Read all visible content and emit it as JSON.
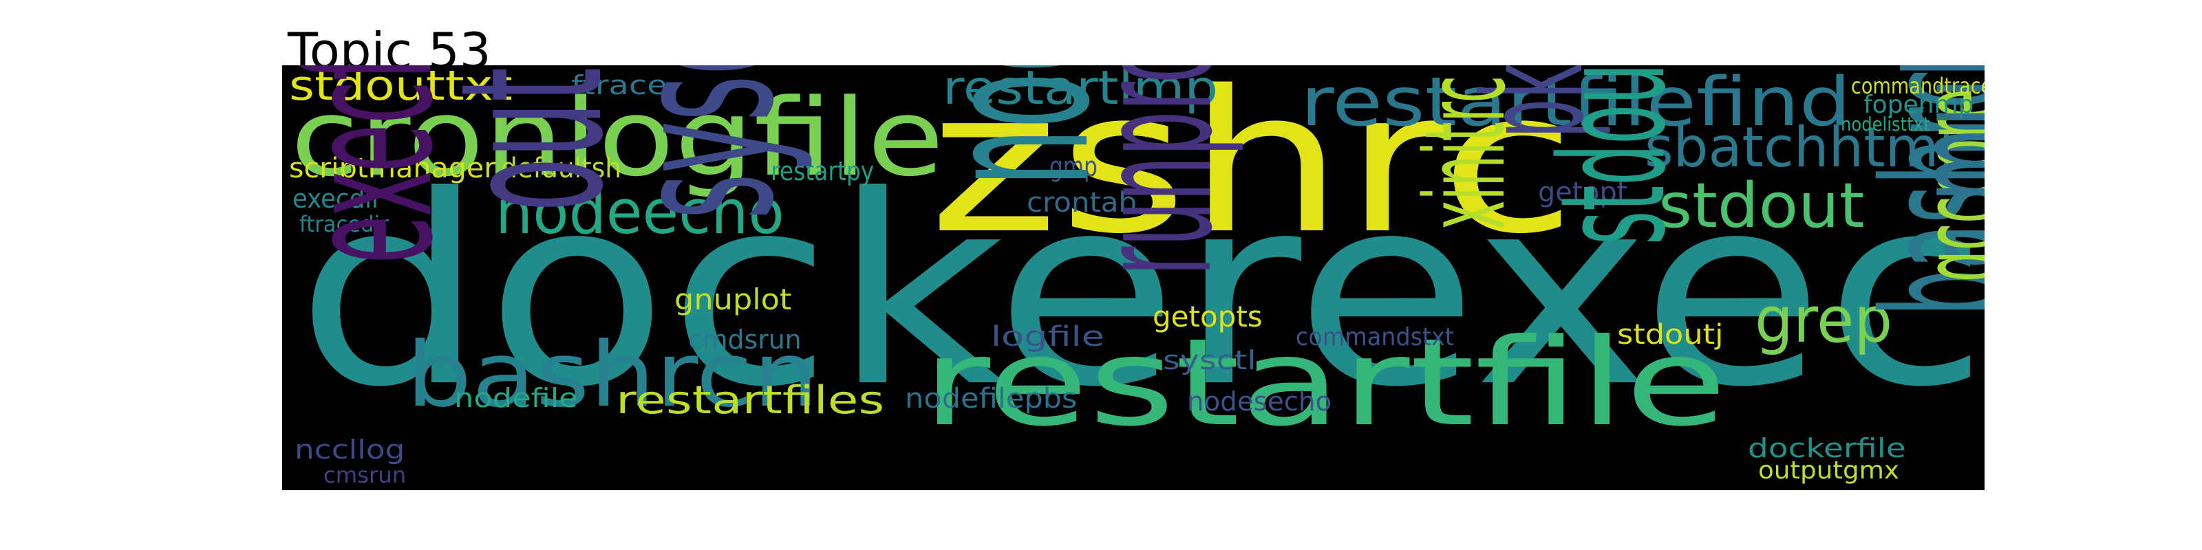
{
  "title": "Topic 53",
  "colors": {
    "page_background": "#ffffff",
    "cloud_background": "#000000"
  },
  "words": [
    {
      "text": "dockerexec",
      "color": "#208c8c"
    },
    {
      "text": "zshrc",
      "color": "#e2e418"
    },
    {
      "text": "restartfile",
      "color": "#35b779"
    },
    {
      "text": "cronlogfile",
      "color": "#7ad151"
    },
    {
      "text": "restartfilefind",
      "color": "#2a788e"
    },
    {
      "text": "bashrcn",
      "color": "#26828e"
    },
    {
      "text": "nodeecho",
      "color": "#22a884"
    },
    {
      "text": "sbatchhtml",
      "color": "#2a788e"
    },
    {
      "text": "stdout",
      "color": "#4ac16d"
    },
    {
      "text": "restartlmp",
      "color": "#25858e"
    },
    {
      "text": "grep",
      "color": "#7ad151"
    },
    {
      "text": "bashrc",
      "color": "#2a788e"
    },
    {
      "text": "gcccore",
      "color": "#a2da37"
    },
    {
      "text": "restartfiles",
      "color": "#bddf26"
    },
    {
      "text": "stdouttxt",
      "color": "#e2e418"
    },
    {
      "text": "scriptmanager",
      "color": "#d8e219"
    },
    {
      "text": "defaultsh",
      "color": "#bddf26"
    },
    {
      "text": "restartpy",
      "color": "#1f9e89"
    },
    {
      "text": "ftrace",
      "color": "#2a788e"
    },
    {
      "text": "execdir",
      "color": "#25858e"
    },
    {
      "text": "ftracedir",
      "color": "#26828e"
    },
    {
      "text": "gmp",
      "color": "#3b528b"
    },
    {
      "text": "crontab",
      "color": "#31688e"
    },
    {
      "text": "getopt",
      "color": "#3e4989"
    },
    {
      "text": "pkgconfig",
      "color": "#414487"
    },
    {
      "text": "multirunlog",
      "color": "#2c728e"
    },
    {
      "text": "nodemanager",
      "color": "#26828e"
    },
    {
      "text": "runprocess",
      "color": "#46327e"
    },
    {
      "text": "xinitrc",
      "color": "#b5de2b"
    },
    {
      "text": "stdoutpbs",
      "color": "#1f9e89"
    },
    {
      "text": "gnuplot",
      "color": "#c2df23"
    },
    {
      "text": "getopts",
      "color": "#dde318"
    },
    {
      "text": "cmdsrun",
      "color": "#2a788e"
    },
    {
      "text": "logfile",
      "color": "#3b528b"
    },
    {
      "text": "commandstxt",
      "color": "#3b528b"
    },
    {
      "text": "stdoutj",
      "color": "#dde318"
    },
    {
      "text": "sysctl",
      "color": "#355f8d"
    },
    {
      "text": "sysctlconf",
      "color": "#3e4989"
    },
    {
      "text": "outputsbatch",
      "color": "#443983"
    },
    {
      "text": "execfilepath",
      "color": "#471164"
    },
    {
      "text": "nodefile",
      "color": "#22a884"
    },
    {
      "text": "nodefilepbs",
      "color": "#2c728e"
    },
    {
      "text": "nodesecho",
      "color": "#3b528b"
    },
    {
      "text": "nccllog",
      "color": "#3e4989"
    },
    {
      "text": "cmsrun",
      "color": "#433e85"
    },
    {
      "text": "dockerfile",
      "color": "#20928c"
    },
    {
      "text": "outputgmx",
      "color": "#bddf26"
    },
    {
      "text": "commandtrace",
      "color": "#d0e11c"
    },
    {
      "text": "fopenmp",
      "color": "#21918c"
    },
    {
      "text": "nodelisttxt",
      "color": "#22a884"
    }
  ]
}
